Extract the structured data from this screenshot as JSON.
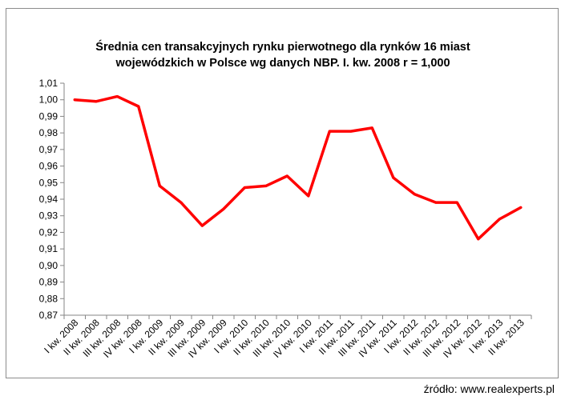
{
  "chart_data": {
    "type": "line",
    "title_lines": [
      "Średnia cen transakcyjnych rynku pierwotnego dla rynków 16 miast",
      "wojewódzkich w Polsce wg danych NBP. I. kw. 2008 r = 1,000"
    ],
    "categories": [
      "I kw. 2008",
      "II kw. 2008",
      "III kw. 2008",
      "IV kw. 2008",
      "I kw. 2009",
      "II kw. 2009",
      "III kw. 2009",
      "IV kw. 2009",
      "I kw. 2010",
      "II kw. 2010",
      "III kw. 2010",
      "IV kw. 2010",
      "I kw. 2011",
      "II kw. 2011",
      "III kw. 2011",
      "IV kw. 2011",
      "I kw. 2012",
      "II kw. 2012",
      "III kw. 2012",
      "IV kw. 2012",
      "I kw. 2013",
      "II kw. 2013"
    ],
    "values": [
      1.0,
      0.999,
      1.002,
      0.996,
      0.948,
      0.938,
      0.924,
      0.934,
      0.947,
      0.948,
      0.954,
      0.942,
      0.981,
      0.981,
      0.983,
      0.953,
      0.943,
      0.938,
      0.938,
      0.916,
      0.928,
      0.935
    ],
    "yticks": [
      "0,87",
      "0,88",
      "0,89",
      "0,90",
      "0,91",
      "0,92",
      "0,93",
      "0,94",
      "0,95",
      "0,96",
      "0,97",
      "0,98",
      "0,99",
      "1,00",
      "1,01"
    ],
    "ylim": [
      0.87,
      1.01
    ],
    "grid": false,
    "legend": "none",
    "line_color": "#ff0000"
  },
  "source": "źródło: www.realexperts.pl"
}
